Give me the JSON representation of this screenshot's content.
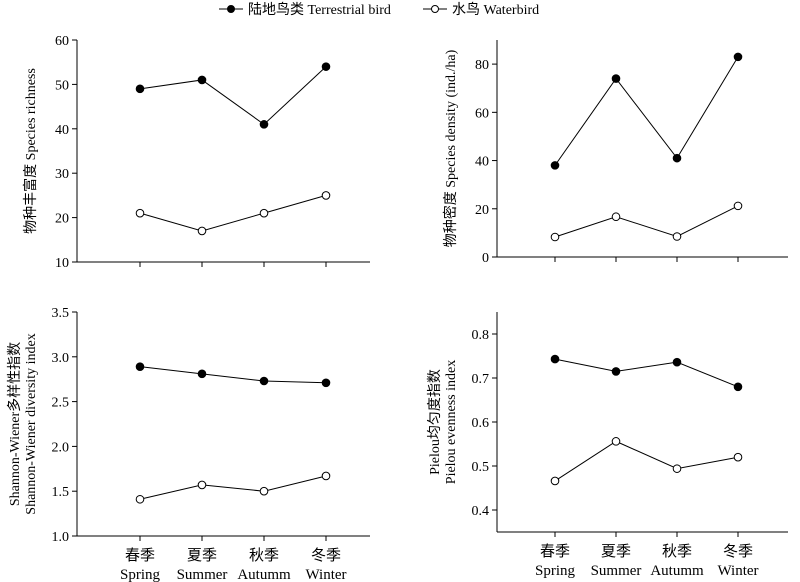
{
  "legend": {
    "terrestrial": "陆地鸟类 Terrestrial bird",
    "waterbird": "水鸟 Waterbird"
  },
  "colors": {
    "line": "#000000",
    "filled_marker": "#000000",
    "open_marker": "#ffffff"
  },
  "chart_data": [
    {
      "type": "line",
      "ylabel": "物种丰富度 Species richness",
      "categories": [
        "Spring",
        "Summer",
        "Autumm",
        "Winter"
      ],
      "ylim": [
        10,
        60
      ],
      "yticks": [
        10,
        20,
        30,
        40,
        50,
        60
      ],
      "series": [
        {
          "name": "陆地鸟类 Terrestrial bird",
          "marker": "filled",
          "values": [
            49,
            51,
            41,
            54
          ]
        },
        {
          "name": "水鸟 Waterbird",
          "marker": "open",
          "values": [
            21,
            17,
            21,
            25
          ]
        }
      ]
    },
    {
      "type": "line",
      "ylabel": "物种密度 Species density (ind./ha)",
      "categories": [
        "Spring",
        "Summer",
        "Autumm",
        "Winter"
      ],
      "ylim": [
        0,
        90
      ],
      "yticks": [
        0,
        20,
        40,
        60,
        80
      ],
      "series": [
        {
          "name": "陆地鸟类 Terrestrial bird",
          "marker": "filled",
          "values": [
            38,
            74,
            41,
            83
          ]
        },
        {
          "name": "水鸟 Waterbird",
          "marker": "open",
          "values": [
            8.3,
            16.7,
            8.5,
            21.2
          ]
        }
      ]
    },
    {
      "type": "line",
      "ylabel_lines": [
        "Shannon-Wiener多样性指数",
        "Shannon-Wiener diversity index"
      ],
      "categories": [
        "春季 Spring",
        "夏季 Summer",
        "秋季 Autumm",
        "冬季 Winter"
      ],
      "ylim": [
        1.0,
        3.5
      ],
      "yticks": [
        "1.0",
        "1.5",
        "2.0",
        "2.5",
        "3.0",
        "3.5"
      ],
      "series": [
        {
          "name": "陆地鸟类 Terrestrial bird",
          "marker": "filled",
          "values": [
            2.89,
            2.81,
            2.73,
            2.71
          ]
        },
        {
          "name": "水鸟 Waterbird",
          "marker": "open",
          "values": [
            1.41,
            1.57,
            1.5,
            1.67
          ]
        }
      ]
    },
    {
      "type": "line",
      "ylabel_lines": [
        "Pielou均匀度指数",
        "Pielou evenness index"
      ],
      "categories": [
        "春季 Spring",
        "夏季 Summer",
        "秋季 Autumm",
        "冬季 Winter"
      ],
      "ylim": [
        0.35,
        0.85
      ],
      "yticks": [
        "0.4",
        "0.5",
        "0.6",
        "0.7",
        "0.8"
      ],
      "series": [
        {
          "name": "陆地鸟类 Terrestrial bird",
          "marker": "filled",
          "values": [
            0.743,
            0.715,
            0.736,
            0.68
          ]
        },
        {
          "name": "水鸟 Waterbird",
          "marker": "open",
          "values": [
            0.466,
            0.556,
            0.494,
            0.52
          ]
        }
      ]
    }
  ],
  "category_labels": {
    "zh": [
      "春季",
      "夏季",
      "秋季",
      "冬季"
    ],
    "en": [
      "Spring",
      "Summer",
      "Autumm",
      "Winter"
    ]
  }
}
